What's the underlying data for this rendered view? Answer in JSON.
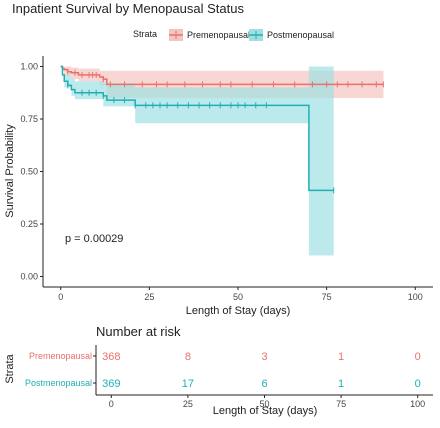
{
  "chart_data": [
    {
      "type": "line",
      "subtype": "kaplan-meier",
      "title": "Inpatient Survival by Menopausal Status",
      "xlabel": "Length of Stay (days)",
      "ylabel": "Survival Probability",
      "xlim": [
        -5,
        105
      ],
      "ylim": [
        -0.05,
        1.05
      ],
      "xticks": [
        0,
        25,
        50,
        75,
        100
      ],
      "yticks": [
        0.0,
        0.25,
        0.5,
        0.75,
        1.0
      ],
      "ytick_labels": [
        "0.00",
        "0.25",
        "0.50",
        "0.75",
        "1.00"
      ],
      "grid": false,
      "legend": {
        "title": "Strata",
        "position": "top"
      },
      "annotation": "p = 0.00029",
      "series": [
        {
          "name": "Premenopausal",
          "color": "#e8716c",
          "fill": "#f5c4c1",
          "steps": [
            [
              0,
              1.0
            ],
            [
              0.5,
              0.99
            ],
            [
              1,
              0.985
            ],
            [
              2,
              0.975
            ],
            [
              3,
              0.97
            ],
            [
              5,
              0.96
            ],
            [
              11,
              0.95
            ],
            [
              12,
              0.94
            ],
            [
              13,
              0.915
            ],
            [
              91,
              0.915
            ]
          ],
          "ci": [
            [
              0,
              1.0,
              1.0
            ],
            [
              1,
              0.96,
              1.0
            ],
            [
              3,
              0.94,
              0.995
            ],
            [
              5,
              0.93,
              0.99
            ],
            [
              11,
              0.91,
              0.98
            ],
            [
              13,
              0.85,
              0.98
            ],
            [
              91,
              0.85,
              0.98
            ]
          ],
          "censor_times": [
            2,
            4,
            6,
            8,
            9,
            10,
            12,
            14,
            18,
            23,
            27,
            30,
            35,
            40,
            45,
            48,
            54,
            60,
            66,
            71,
            75,
            78,
            81,
            85,
            89,
            91
          ]
        },
        {
          "name": "Postmenopausal",
          "color": "#1fb0b3",
          "fill": "#9fdfe2",
          "steps": [
            [
              0,
              1.0
            ],
            [
              0.5,
              0.96
            ],
            [
              1,
              0.93
            ],
            [
              2,
              0.91
            ],
            [
              3,
              0.89
            ],
            [
              4,
              0.875
            ],
            [
              12,
              0.86
            ],
            [
              13,
              0.84
            ],
            [
              21,
              0.815
            ],
            [
              70,
              0.41
            ],
            [
              77,
              0.41
            ]
          ],
          "ci": [
            [
              0,
              1.0,
              1.0
            ],
            [
              1,
              0.9,
              0.96
            ],
            [
              3,
              0.86,
              0.94
            ],
            [
              4,
              0.845,
              0.93
            ],
            [
              12,
              0.81,
              0.92
            ],
            [
              21,
              0.73,
              0.9
            ],
            [
              70,
              0.1,
              1.0
            ],
            [
              77,
              0.1,
              1.0
            ]
          ],
          "censor_times": [
            2,
            6,
            8,
            10,
            12,
            15,
            18,
            21,
            24,
            26,
            28,
            30,
            33,
            36,
            39,
            42,
            45,
            48,
            50,
            52,
            55,
            58,
            77
          ]
        }
      ]
    },
    {
      "type": "table",
      "title": "Number at risk",
      "xlabel": "Length of Stay (days)",
      "ylabel": "Strata",
      "x": [
        0,
        25,
        50,
        75,
        100
      ],
      "xticks": [
        0,
        25,
        50,
        75,
        100
      ],
      "rows": [
        {
          "name": "Premenopausal",
          "color": "#e8716c",
          "values": [
            368,
            8,
            3,
            1,
            0
          ]
        },
        {
          "name": "Postmenopausal",
          "color": "#1fb0b3",
          "values": [
            369,
            17,
            6,
            1,
            0
          ]
        }
      ]
    }
  ]
}
